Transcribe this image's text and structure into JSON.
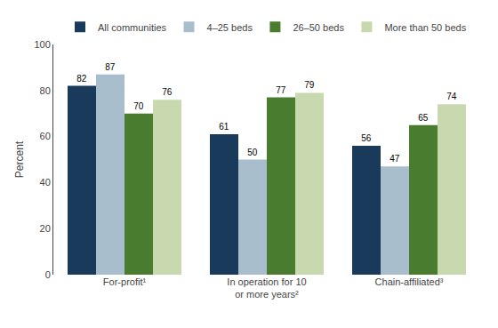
{
  "chart_data": {
    "type": "bar",
    "categories": [
      "For-profit¹",
      "In operation for 10\nor more years²",
      "Chain-affiliated³"
    ],
    "series": [
      {
        "name": "All communities",
        "color": "#1a3a5c",
        "values": [
          82,
          61,
          56
        ]
      },
      {
        "name": "4–25 beds",
        "color": "#a8becc",
        "values": [
          87,
          50,
          47
        ]
      },
      {
        "name": "26–50 beds",
        "color": "#4a7c2f",
        "values": [
          70,
          77,
          65
        ]
      },
      {
        "name": "More than 50 beds",
        "color": "#c8d9b0",
        "values": [
          76,
          79,
          74
        ]
      }
    ],
    "ylabel": "Percent",
    "ylim": [
      0,
      100
    ],
    "yticks": [
      0,
      20,
      40,
      60,
      80,
      100
    ],
    "grid": false,
    "legend": "top",
    "data_labels": true
  }
}
